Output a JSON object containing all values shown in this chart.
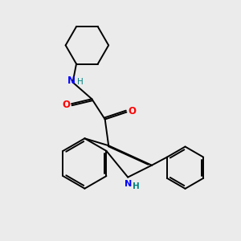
{
  "bg_color": "#ebebeb",
  "bond_color": "#000000",
  "N_color": "#0000ff",
  "O_color": "#ff0000",
  "NH_color": "#008080",
  "figsize": [
    3.0,
    3.0
  ],
  "dpi": 100,
  "lw": 1.4,
  "xlim": [
    0,
    10
  ],
  "ylim": [
    0,
    10
  ]
}
